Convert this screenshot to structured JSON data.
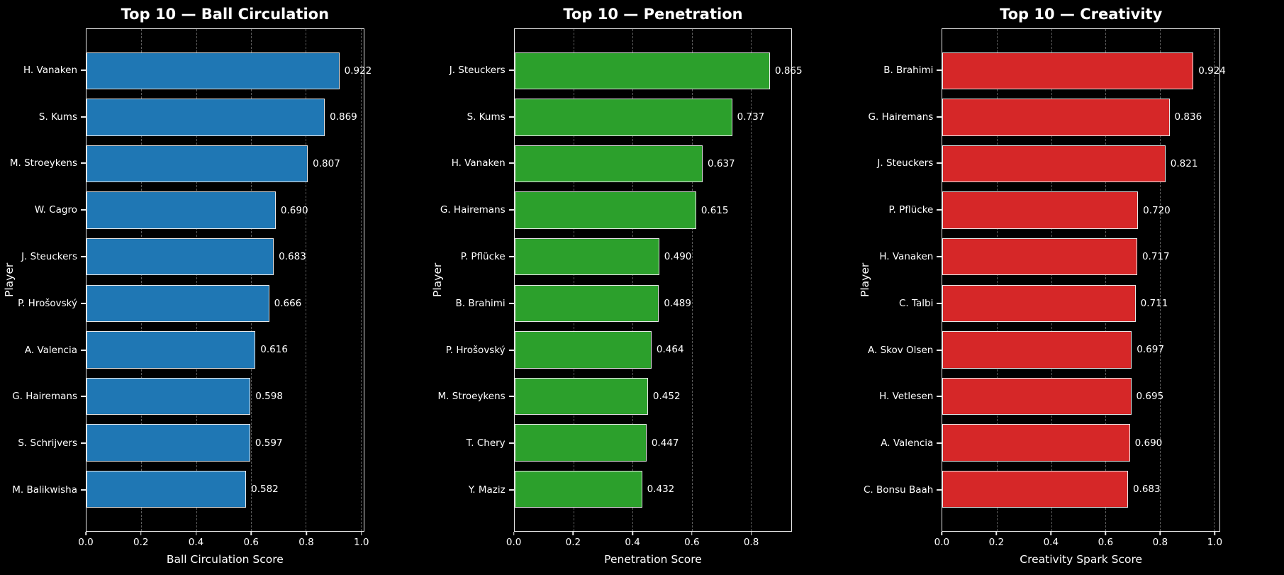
{
  "figure": {
    "background_color": "#000000",
    "text_color": "#ffffff",
    "grid_color": "#5c5c5c",
    "spine_color": "#e6e6e6",
    "bar_edge_color": "#e6e6e6"
  },
  "chart_data": [
    {
      "type": "bar",
      "orientation": "horizontal",
      "title": "Top 10 — Ball Circulation",
      "xlabel": "Ball Circulation Score",
      "ylabel": "Player",
      "bar_color": "#1f77b4",
      "grid": "dashed-vertical",
      "legend": "none",
      "xlim": [
        0,
        1.01
      ],
      "xtick_values": [
        0.0,
        0.2,
        0.4,
        0.6,
        0.8,
        1.0
      ],
      "xticks": [
        "0.0",
        "0.2",
        "0.4",
        "0.6",
        "0.8",
        "1.0"
      ],
      "categories": [
        "H. Vanaken",
        "S. Kums",
        "M. Stroeykens",
        "W. Cagro",
        "J. Steuckers",
        "P. Hrošovský",
        "A. Valencia",
        "G. Hairemans",
        "S. Schrijvers",
        "M. Balikwisha"
      ],
      "values": [
        0.922,
        0.869,
        0.807,
        0.69,
        0.683,
        0.666,
        0.616,
        0.598,
        0.597,
        0.582
      ],
      "value_labels": [
        "0.922",
        "0.869",
        "0.807",
        "0.690",
        "0.683",
        "0.666",
        "0.616",
        "0.598",
        "0.597",
        "0.582"
      ]
    },
    {
      "type": "bar",
      "orientation": "horizontal",
      "title": "Top 10 — Penetration",
      "xlabel": "Penetration Score",
      "ylabel": "Player",
      "bar_color": "#2ca02c",
      "grid": "dashed-vertical",
      "legend": "none",
      "xlim": [
        0,
        0.938
      ],
      "xtick_values": [
        0.0,
        0.2,
        0.4,
        0.6,
        0.8
      ],
      "xticks": [
        "0.0",
        "0.2",
        "0.4",
        "0.6",
        "0.8"
      ],
      "categories": [
        "J. Steuckers",
        "S. Kums",
        "H. Vanaken",
        "G. Hairemans",
        "P. Pflücke",
        "B. Brahimi",
        "P. Hrošovský",
        "M. Stroeykens",
        "T. Chery",
        "Y. Maziz"
      ],
      "values": [
        0.865,
        0.737,
        0.637,
        0.615,
        0.49,
        0.489,
        0.464,
        0.452,
        0.447,
        0.432
      ],
      "value_labels": [
        "0.865",
        "0.737",
        "0.637",
        "0.615",
        "0.490",
        "0.489",
        "0.464",
        "0.452",
        "0.447",
        "0.432"
      ]
    },
    {
      "type": "bar",
      "orientation": "horizontal",
      "title": "Top 10 — Creativity",
      "xlabel": "Creativity Spark Score",
      "ylabel": "Player",
      "bar_color": "#d62728",
      "grid": "dashed-vertical",
      "legend": "none",
      "xlim": [
        0,
        1.02
      ],
      "xtick_values": [
        0.0,
        0.2,
        0.4,
        0.6,
        0.8,
        1.0
      ],
      "xticks": [
        "0.0",
        "0.2",
        "0.4",
        "0.6",
        "0.8",
        "1.0"
      ],
      "categories": [
        "B. Brahimi",
        "G. Hairemans",
        "J. Steuckers",
        "P. Pflücke",
        "H. Vanaken",
        "C. Talbi",
        "A. Skov Olsen",
        "H. Vetlesen",
        "A. Valencia",
        "C. Bonsu Baah"
      ],
      "values": [
        0.924,
        0.836,
        0.821,
        0.72,
        0.717,
        0.711,
        0.697,
        0.695,
        0.69,
        0.683
      ],
      "value_labels": [
        "0.924",
        "0.836",
        "0.821",
        "0.720",
        "0.717",
        "0.711",
        "0.697",
        "0.695",
        "0.690",
        "0.683"
      ]
    }
  ]
}
